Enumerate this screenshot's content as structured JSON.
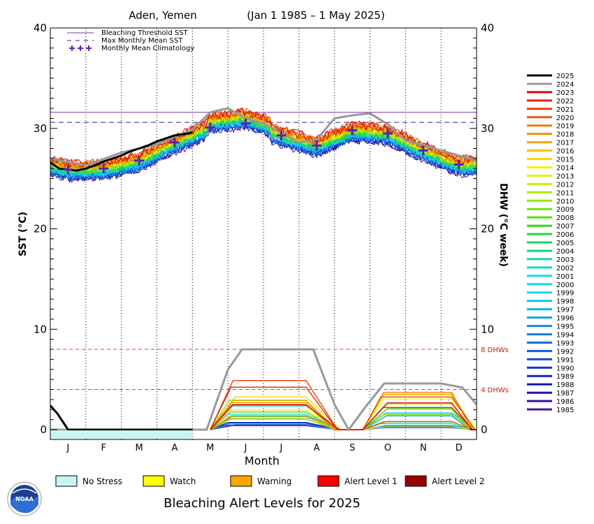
{
  "chart_data": {
    "type": "line",
    "title": "Aden, Yemen",
    "subtitle": "(Jan 1 1985 – 1 May 2025)",
    "xlabel": "Month",
    "ylabel": "SST (°C)",
    "ylabel_right": "DHW (°C week)",
    "ylim": [
      0,
      40
    ],
    "yticks": [
      0,
      10,
      20,
      30,
      40
    ],
    "months": [
      "J",
      "F",
      "M",
      "A",
      "M",
      "J",
      "J",
      "A",
      "S",
      "O",
      "N",
      "D"
    ],
    "bleaching_threshold_sst": 31.6,
    "max_monthly_mean_sst": 30.6,
    "monthly_mean_climatology": [
      25.9,
      26.0,
      26.8,
      28.6,
      30.1,
      30.5,
      29.3,
      28.3,
      29.8,
      29.5,
      27.8,
      26.4
    ],
    "dhw_reference_lines": [
      {
        "value": 8,
        "label": "8 DHWs"
      },
      {
        "value": 4,
        "label": "4 DHWs"
      }
    ],
    "key": [
      {
        "label": "Bleaching Threshold SST",
        "color": "#7a2fb0",
        "style": "solid"
      },
      {
        "label": "Max Monthly Mean SST",
        "color": "#3a1a80",
        "style": "dashed"
      },
      {
        "label": "Monthly Mean Climatology",
        "color": "#5a22b0",
        "style": "cross"
      }
    ],
    "years": [
      "2025",
      "2024",
      "2023",
      "2022",
      "2021",
      "2020",
      "2019",
      "2018",
      "2017",
      "2016",
      "2015",
      "2014",
      "2013",
      "2012",
      "2011",
      "2010",
      "2009",
      "2008",
      "2007",
      "2006",
      "2005",
      "2004",
      "2003",
      "2002",
      "2001",
      "2000",
      "1999",
      "1998",
      "1997",
      "1996",
      "1995",
      "1994",
      "1993",
      "1992",
      "1991",
      "1990",
      "1989",
      "1988",
      "1987",
      "1986",
      "1985"
    ],
    "year_colors": [
      "#000000",
      "#999999",
      "#e00000",
      "#e81e00",
      "#ee3c00",
      "#f05a00",
      "#f27800",
      "#f49000",
      "#f6a800",
      "#f8c000",
      "#f8d800",
      "#f6ee00",
      "#e6f200",
      "#ccf000",
      "#b0ec00",
      "#94e800",
      "#74e400",
      "#50e000",
      "#2cdc10",
      "#18d838",
      "#10d460",
      "#10d484",
      "#10d8a8",
      "#10dcc8",
      "#10e0e0",
      "#10e0f0",
      "#10d4f4",
      "#10c4f4",
      "#10b4f0",
      "#10a2ec",
      "#1090e8",
      "#107ee4",
      "#106ce0",
      "#105adc",
      "#1048d4",
      "#1036c8",
      "#1026bc",
      "#1018b0",
      "#2010a8",
      "#3410a8",
      "#4a10a8"
    ],
    "series_2025": {
      "sst": [
        [
          0.0,
          26.6
        ],
        [
          0.25,
          26.0
        ],
        [
          0.5,
          25.9
        ],
        [
          0.75,
          25.8
        ],
        [
          1.0,
          26.0
        ],
        [
          1.25,
          26.3
        ],
        [
          1.5,
          26.7
        ],
        [
          1.75,
          27.0
        ],
        [
          2.0,
          27.3
        ],
        [
          2.25,
          27.7
        ],
        [
          2.5,
          28.0
        ],
        [
          2.75,
          28.3
        ],
        [
          3.0,
          28.7
        ],
        [
          3.25,
          29.0
        ],
        [
          3.5,
          29.3
        ],
        [
          3.9,
          29.5
        ],
        [
          4.0,
          29.6
        ]
      ],
      "dhw": [
        [
          0.0,
          2.4
        ],
        [
          0.2,
          1.6
        ],
        [
          0.35,
          0.8
        ],
        [
          0.5,
          0.0
        ],
        [
          4.0,
          0.0
        ]
      ]
    },
    "series_2024": {
      "sst": [
        [
          0.0,
          27.0
        ],
        [
          1.0,
          26.3
        ],
        [
          2.0,
          27.6
        ],
        [
          3.0,
          28.4
        ],
        [
          4.0,
          29.9
        ],
        [
          4.5,
          31.6
        ],
        [
          5.0,
          32.0
        ],
        [
          5.5,
          31.0
        ],
        [
          6.0,
          30.5
        ],
        [
          7.0,
          28.6
        ],
        [
          7.5,
          28.9
        ],
        [
          8.0,
          31.0
        ],
        [
          8.5,
          31.3
        ],
        [
          9.0,
          31.5
        ],
        [
          9.5,
          30.4
        ],
        [
          10.0,
          28.8
        ],
        [
          11.0,
          27.8
        ],
        [
          12.0,
          26.8
        ]
      ],
      "dhw": [
        [
          0.0,
          0.0
        ],
        [
          4.4,
          0.0
        ],
        [
          5.0,
          6.0
        ],
        [
          5.4,
          8.0
        ],
        [
          7.4,
          8.0
        ],
        [
          8.0,
          2.5
        ],
        [
          8.4,
          0.0
        ],
        [
          8.9,
          2.4
        ],
        [
          9.4,
          4.6
        ],
        [
          10.0,
          4.6
        ],
        [
          11.0,
          4.6
        ],
        [
          11.6,
          4.2
        ],
        [
          12.0,
          2.5
        ]
      ]
    },
    "alert_bar": {
      "level": "No Stress",
      "through_month": 4.0
    },
    "alert_levels": [
      {
        "label": "No Stress",
        "color": "#c8f4f4"
      },
      {
        "label": "Watch",
        "color": "#ffff00"
      },
      {
        "label": "Warning",
        "color": "#ffa500"
      },
      {
        "label": "Alert Level 1",
        "color": "#ff0000"
      },
      {
        "label": "Alert Level 2",
        "color": "#990000"
      }
    ],
    "logo_text": "NOAA"
  },
  "footer": {
    "title": "Bleaching Alert Levels for 2025"
  }
}
